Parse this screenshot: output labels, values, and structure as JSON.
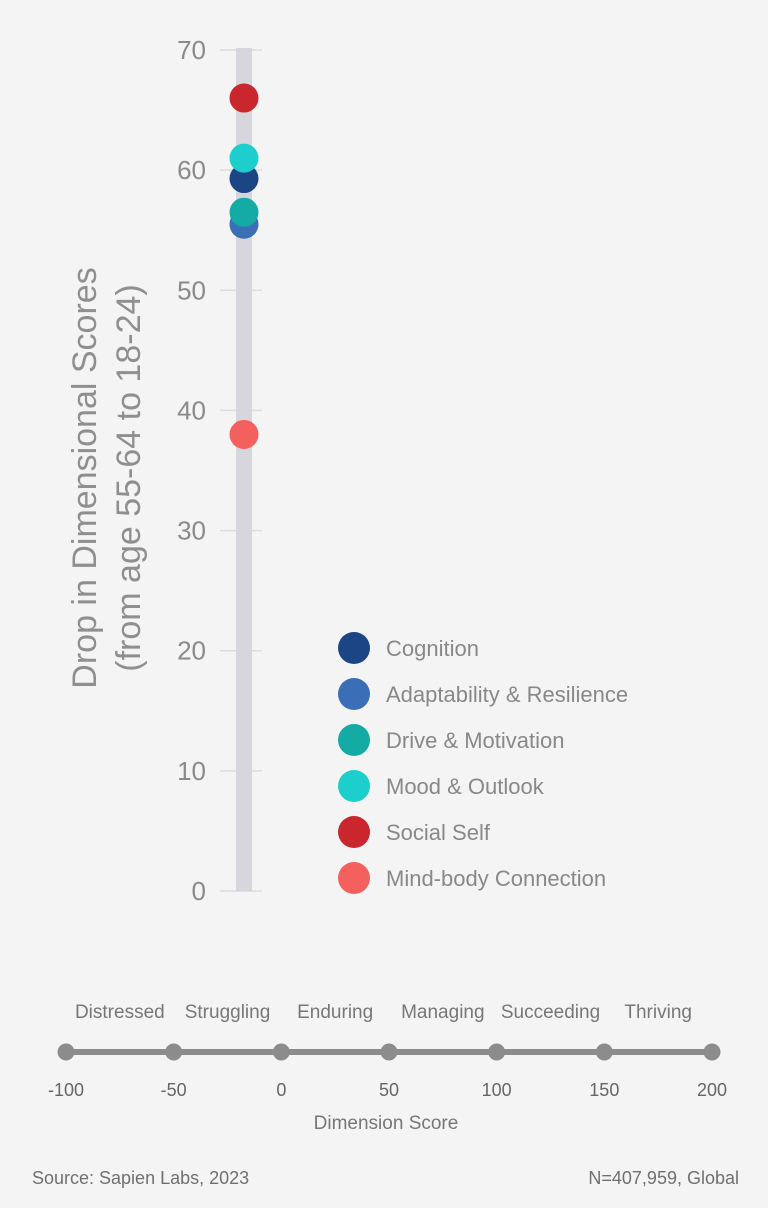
{
  "chart_data": {
    "type": "scatter",
    "ylabel_line1": "Drop in Dimensional Scores",
    "ylabel_line2": "(from age 55-64 to 18-24)",
    "ylim": [
      0,
      70
    ],
    "yticks": [
      0,
      10,
      20,
      30,
      40,
      50,
      60,
      70
    ],
    "series": [
      {
        "name": "Cognition",
        "value": 59.3,
        "color": "#1b4585"
      },
      {
        "name": "Adaptability & Resilience",
        "value": 55.5,
        "color": "#3a6fb8"
      },
      {
        "name": "Drive & Motivation",
        "value": 56.5,
        "color": "#13aba4"
      },
      {
        "name": "Mood & Outlook",
        "value": 61.0,
        "color": "#1ccfcc"
      },
      {
        "name": "Social Self",
        "value": 66.0,
        "color": "#c9262e"
      },
      {
        "name": "Mind-body Connection",
        "value": 38.0,
        "color": "#f4605e"
      }
    ],
    "scale": {
      "categories": [
        "Distressed",
        "Struggling",
        "Enduring",
        "Managing",
        "Succeeding",
        "Thriving"
      ],
      "ticks": [
        "-100",
        "-50",
        "0",
        "50",
        "100",
        "150",
        "200"
      ],
      "xlabel": "Dimension Score"
    }
  },
  "footer": {
    "source": "Source: Sapien Labs, 2023",
    "sample": "N=407,959, Global"
  }
}
